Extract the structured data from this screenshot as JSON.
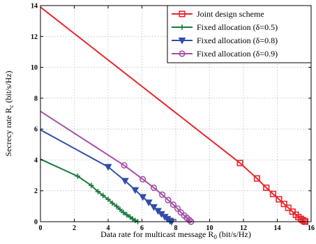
{
  "chart_data": {
    "type": "line",
    "title": "",
    "xlabel": "Data rate for multicast message R",
    "xlabel_sub": "0",
    "xlabel_unit": " (bit/s/Hz)",
    "ylabel": "Secrecy rate R",
    "ylabel_sub": "c",
    "ylabel_unit": " (bit/s/Hz)",
    "xlim": [
      0,
      16
    ],
    "ylim": [
      0,
      14
    ],
    "xticks": [
      0,
      2,
      4,
      6,
      8,
      10,
      12,
      14,
      16
    ],
    "yticks": [
      0,
      2,
      4,
      6,
      8,
      10,
      12,
      14
    ],
    "xtick_labels": [
      "0",
      "2",
      "4",
      "6",
      "8",
      "10",
      "12",
      "14",
      "16"
    ],
    "ytick_labels": [
      "0",
      "2",
      "4",
      "6",
      "8",
      "10",
      "12",
      "14"
    ],
    "grid": true,
    "legend_position": "top-right",
    "series": [
      {
        "name": "Joint design scheme",
        "color": "#e8262c",
        "marker": "square",
        "x": [
          0,
          11.8,
          12.8,
          13.35,
          13.75,
          14.1,
          14.4,
          14.65,
          14.9,
          15.1,
          15.25,
          15.4,
          15.5,
          15.6,
          15.65
        ],
        "y": [
          13.9,
          3.8,
          2.8,
          2.2,
          1.8,
          1.45,
          1.15,
          0.9,
          0.65,
          0.45,
          0.3,
          0.18,
          0.1,
          0.04,
          0.0
        ],
        "marked_from": 1
      },
      {
        "name": "Fixed allocation (δ=0.5)",
        "color": "#1a7a3e",
        "marker": "plus",
        "x": [
          0,
          2.2,
          3.0,
          3.4,
          3.7,
          4.0,
          4.25,
          4.5,
          4.7,
          4.9,
          5.1,
          5.3,
          5.45,
          5.6,
          5.75
        ],
        "y": [
          4.05,
          2.95,
          2.35,
          1.95,
          1.7,
          1.45,
          1.2,
          1.0,
          0.8,
          0.6,
          0.45,
          0.3,
          0.18,
          0.08,
          0.0
        ],
        "marked_from": 1
      },
      {
        "name": "Fixed allocation (δ=0.8)",
        "color": "#2f4ea8",
        "marker": "triangle-down",
        "x": [
          0,
          4.0,
          5.0,
          5.6,
          6.05,
          6.4,
          6.7,
          6.95,
          7.15,
          7.35,
          7.5,
          7.65,
          7.75
        ],
        "y": [
          5.95,
          3.55,
          2.65,
          2.05,
          1.6,
          1.25,
          0.95,
          0.7,
          0.5,
          0.32,
          0.18,
          0.07,
          0.0
        ],
        "marked_from": 1
      },
      {
        "name": "Fixed allocation (δ=0.9)",
        "color": "#a54fa8",
        "marker": "circle",
        "x": [
          0,
          4.95,
          6.05,
          6.7,
          7.2,
          7.55,
          7.85,
          8.1,
          8.3,
          8.5,
          8.65,
          8.8,
          8.9
        ],
        "y": [
          7.15,
          3.65,
          2.75,
          2.2,
          1.75,
          1.4,
          1.1,
          0.85,
          0.6,
          0.4,
          0.25,
          0.1,
          0.0
        ],
        "marked_from": 1
      }
    ]
  }
}
